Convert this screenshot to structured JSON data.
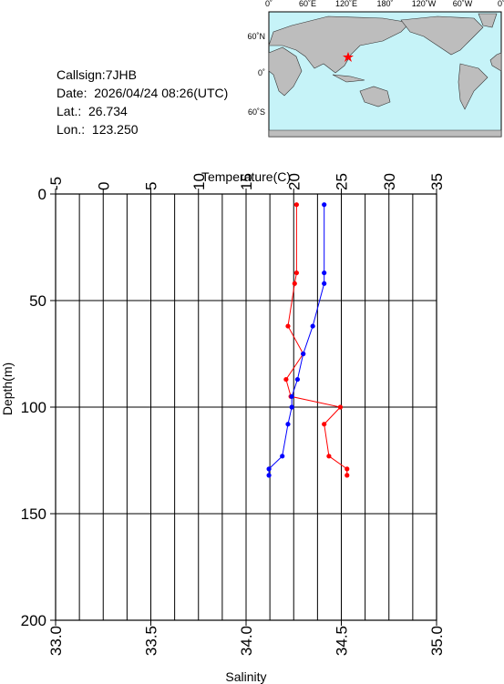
{
  "header": {
    "callsign": "Callsign:7JHB",
    "date": "Date:  2026/04/24 08:26(UTC)",
    "lat": "Lat.:  26.734",
    "lon": "Lon.:  123.250"
  },
  "map": {
    "lon_labels": [
      "0˚",
      "60˚E",
      "120˚E",
      "180˚",
      "120˚W",
      "60˚W",
      "0˚"
    ],
    "lat_labels": [
      "60˚N",
      "0˚",
      "60˚S"
    ]
  },
  "chart_data": {
    "type": "profile",
    "xlabel": "Temperature(C)",
    "x2label": "Salinity",
    "ylabel": "Depth(m)",
    "xlim": [
      -5,
      35
    ],
    "xticks": [
      -5,
      0,
      5,
      10,
      15,
      20,
      25,
      30,
      35
    ],
    "xgrid": [
      -2.5,
      0,
      2.5,
      5,
      7.5,
      10,
      12.5,
      15,
      17.5,
      20,
      22.5,
      25,
      27.5,
      30,
      32.5
    ],
    "x2lim": [
      33.0,
      35.0
    ],
    "x2ticks": [
      {
        "value": 33,
        "label": "33.0"
      },
      {
        "value": 33.5,
        "label": "33.5"
      },
      {
        "value": 34,
        "label": "34.0"
      },
      {
        "value": 34.5,
        "label": "34.5"
      },
      {
        "value": 35,
        "label": "35.0"
      }
    ],
    "ylim": [
      0,
      200
    ],
    "yticks": [
      0,
      50,
      100,
      150,
      200
    ],
    "grid": true,
    "depth": [
      5,
      37,
      42,
      62,
      75,
      87,
      95,
      100,
      108,
      123,
      129,
      132
    ],
    "series": [
      {
        "name": "Temperature",
        "color": "#ff0000",
        "axis": "x",
        "values": [
          20.3,
          20.3,
          20.1,
          19.4,
          21.0,
          19.2,
          19.7,
          24.9,
          23.2,
          23.7,
          25.6,
          25.6
        ]
      },
      {
        "name": "Salinity",
        "color": "#0000ff",
        "axis": "x2",
        "values": [
          34.41,
          34.41,
          34.41,
          34.35,
          34.3,
          34.27,
          34.24,
          34.24,
          34.22,
          34.19,
          34.12,
          34.12
        ]
      }
    ]
  }
}
